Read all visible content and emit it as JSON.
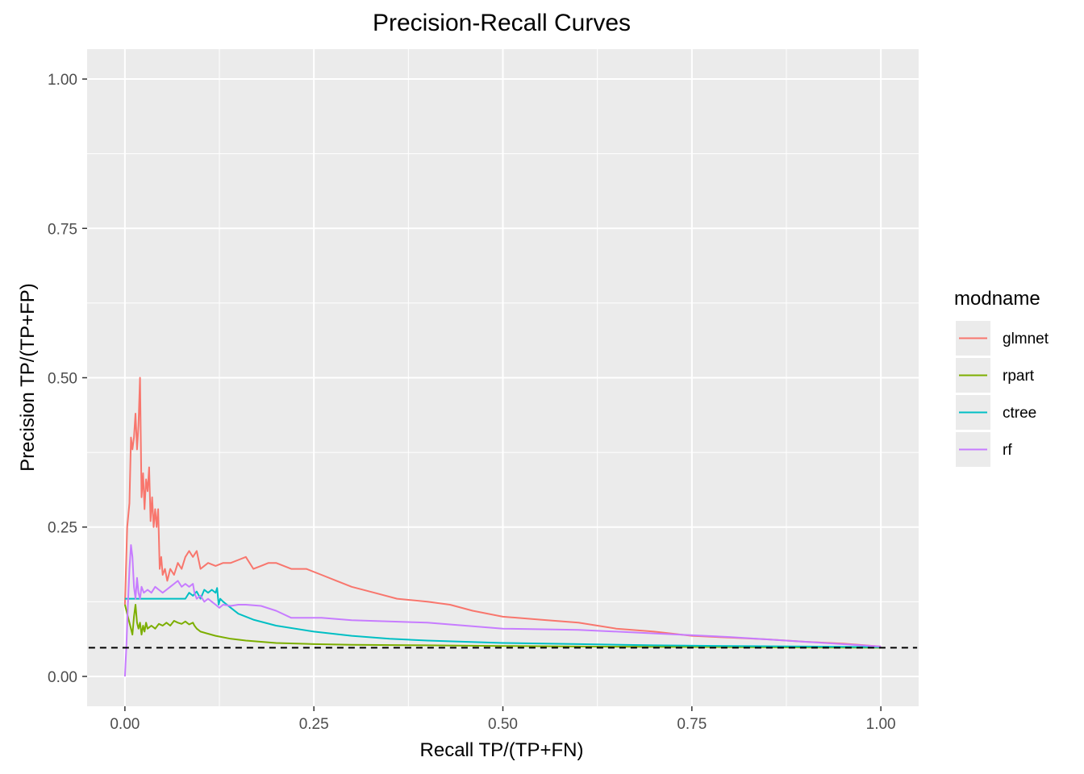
{
  "chart_data": {
    "type": "line",
    "title": "Precision-Recall Curves",
    "xlabel": "Recall TP/(TP+FN)",
    "ylabel": "Precision TP/(TP+FP)",
    "xlim": [
      -0.05,
      1.05
    ],
    "ylim": [
      -0.05,
      1.05
    ],
    "x_ticks": [
      0.0,
      0.25,
      0.5,
      0.75,
      1.0
    ],
    "x_tick_labels": [
      "0.00",
      "0.25",
      "0.50",
      "0.75",
      "1.00"
    ],
    "y_ticks": [
      0.0,
      0.25,
      0.5,
      0.75,
      1.0
    ],
    "y_tick_labels": [
      "0.00",
      "0.25",
      "0.50",
      "0.75",
      "1.00"
    ],
    "grid": true,
    "legend": {
      "title": "modname",
      "position": "right"
    },
    "baseline": {
      "y": 0.048,
      "style": "dashed",
      "color": "#000000"
    },
    "series": [
      {
        "name": "glmnet",
        "color": "#F8766D",
        "points": [
          [
            0.0,
            0.12
          ],
          [
            0.003,
            0.25
          ],
          [
            0.006,
            0.29
          ],
          [
            0.008,
            0.4
          ],
          [
            0.01,
            0.38
          ],
          [
            0.012,
            0.4
          ],
          [
            0.014,
            0.44
          ],
          [
            0.016,
            0.38
          ],
          [
            0.018,
            0.42
          ],
          [
            0.02,
            0.5
          ],
          [
            0.022,
            0.3
          ],
          [
            0.024,
            0.34
          ],
          [
            0.026,
            0.28
          ],
          [
            0.028,
            0.33
          ],
          [
            0.03,
            0.31
          ],
          [
            0.032,
            0.35
          ],
          [
            0.034,
            0.26
          ],
          [
            0.036,
            0.3
          ],
          [
            0.038,
            0.25
          ],
          [
            0.04,
            0.28
          ],
          [
            0.042,
            0.25
          ],
          [
            0.044,
            0.28
          ],
          [
            0.046,
            0.18
          ],
          [
            0.048,
            0.2
          ],
          [
            0.05,
            0.17
          ],
          [
            0.053,
            0.18
          ],
          [
            0.056,
            0.16
          ],
          [
            0.06,
            0.18
          ],
          [
            0.065,
            0.17
          ],
          [
            0.07,
            0.19
          ],
          [
            0.075,
            0.18
          ],
          [
            0.08,
            0.2
          ],
          [
            0.085,
            0.21
          ],
          [
            0.09,
            0.2
          ],
          [
            0.095,
            0.21
          ],
          [
            0.1,
            0.18
          ],
          [
            0.11,
            0.19
          ],
          [
            0.12,
            0.185
          ],
          [
            0.13,
            0.19
          ],
          [
            0.14,
            0.19
          ],
          [
            0.15,
            0.195
          ],
          [
            0.16,
            0.2
          ],
          [
            0.17,
            0.18
          ],
          [
            0.18,
            0.185
          ],
          [
            0.19,
            0.19
          ],
          [
            0.2,
            0.19
          ],
          [
            0.22,
            0.18
          ],
          [
            0.24,
            0.18
          ],
          [
            0.26,
            0.17
          ],
          [
            0.28,
            0.16
          ],
          [
            0.3,
            0.15
          ],
          [
            0.33,
            0.14
          ],
          [
            0.36,
            0.13
          ],
          [
            0.4,
            0.125
          ],
          [
            0.43,
            0.12
          ],
          [
            0.46,
            0.11
          ],
          [
            0.5,
            0.1
          ],
          [
            0.55,
            0.095
          ],
          [
            0.6,
            0.09
          ],
          [
            0.65,
            0.08
          ],
          [
            0.7,
            0.075
          ],
          [
            0.75,
            0.068
          ],
          [
            0.8,
            0.065
          ],
          [
            0.85,
            0.062
          ],
          [
            0.9,
            0.058
          ],
          [
            0.95,
            0.055
          ],
          [
            1.0,
            0.05
          ]
        ]
      },
      {
        "name": "rpart",
        "color": "#7CAE00",
        "points": [
          [
            0.0,
            0.12
          ],
          [
            0.004,
            0.1
          ],
          [
            0.008,
            0.08
          ],
          [
            0.01,
            0.07
          ],
          [
            0.012,
            0.1
          ],
          [
            0.014,
            0.12
          ],
          [
            0.016,
            0.09
          ],
          [
            0.018,
            0.08
          ],
          [
            0.02,
            0.09
          ],
          [
            0.022,
            0.07
          ],
          [
            0.024,
            0.085
          ],
          [
            0.026,
            0.075
          ],
          [
            0.028,
            0.09
          ],
          [
            0.03,
            0.08
          ],
          [
            0.035,
            0.085
          ],
          [
            0.04,
            0.08
          ],
          [
            0.045,
            0.088
          ],
          [
            0.05,
            0.085
          ],
          [
            0.055,
            0.09
          ],
          [
            0.06,
            0.085
          ],
          [
            0.065,
            0.093
          ],
          [
            0.07,
            0.09
          ],
          [
            0.075,
            0.088
          ],
          [
            0.08,
            0.092
          ],
          [
            0.085,
            0.087
          ],
          [
            0.09,
            0.09
          ],
          [
            0.092,
            0.085
          ],
          [
            0.095,
            0.08
          ],
          [
            0.1,
            0.075
          ],
          [
            0.12,
            0.068
          ],
          [
            0.14,
            0.063
          ],
          [
            0.16,
            0.06
          ],
          [
            0.2,
            0.056
          ],
          [
            0.25,
            0.054
          ],
          [
            0.3,
            0.053
          ],
          [
            0.4,
            0.052
          ],
          [
            0.5,
            0.051
          ],
          [
            0.6,
            0.05
          ],
          [
            0.8,
            0.049
          ],
          [
            1.0,
            0.048
          ]
        ]
      },
      {
        "name": "ctree",
        "color": "#00BFC4",
        "points": [
          [
            0.0,
            0.13
          ],
          [
            0.02,
            0.13
          ],
          [
            0.04,
            0.13
          ],
          [
            0.06,
            0.13
          ],
          [
            0.07,
            0.13
          ],
          [
            0.08,
            0.13
          ],
          [
            0.085,
            0.14
          ],
          [
            0.09,
            0.135
          ],
          [
            0.095,
            0.142
          ],
          [
            0.1,
            0.13
          ],
          [
            0.105,
            0.145
          ],
          [
            0.11,
            0.14
          ],
          [
            0.115,
            0.145
          ],
          [
            0.12,
            0.14
          ],
          [
            0.122,
            0.148
          ],
          [
            0.124,
            0.12
          ],
          [
            0.126,
            0.13
          ],
          [
            0.13,
            0.125
          ],
          [
            0.14,
            0.115
          ],
          [
            0.15,
            0.105
          ],
          [
            0.17,
            0.095
          ],
          [
            0.2,
            0.085
          ],
          [
            0.25,
            0.075
          ],
          [
            0.3,
            0.068
          ],
          [
            0.35,
            0.063
          ],
          [
            0.4,
            0.06
          ],
          [
            0.5,
            0.056
          ],
          [
            0.6,
            0.054
          ],
          [
            0.7,
            0.052
          ],
          [
            0.8,
            0.051
          ],
          [
            0.9,
            0.05
          ],
          [
            1.0,
            0.049
          ]
        ]
      },
      {
        "name": "rf",
        "color": "#C77CFF",
        "points": [
          [
            0.0,
            0.0
          ],
          [
            0.002,
            0.05
          ],
          [
            0.004,
            0.12
          ],
          [
            0.006,
            0.18
          ],
          [
            0.008,
            0.22
          ],
          [
            0.01,
            0.2
          ],
          [
            0.012,
            0.15
          ],
          [
            0.014,
            0.13
          ],
          [
            0.016,
            0.165
          ],
          [
            0.018,
            0.14
          ],
          [
            0.02,
            0.13
          ],
          [
            0.022,
            0.15
          ],
          [
            0.025,
            0.14
          ],
          [
            0.03,
            0.145
          ],
          [
            0.035,
            0.14
          ],
          [
            0.04,
            0.15
          ],
          [
            0.045,
            0.145
          ],
          [
            0.05,
            0.14
          ],
          [
            0.055,
            0.145
          ],
          [
            0.06,
            0.15
          ],
          [
            0.065,
            0.155
          ],
          [
            0.07,
            0.16
          ],
          [
            0.075,
            0.15
          ],
          [
            0.08,
            0.155
          ],
          [
            0.085,
            0.15
          ],
          [
            0.09,
            0.155
          ],
          [
            0.092,
            0.14
          ],
          [
            0.095,
            0.13
          ],
          [
            0.1,
            0.135
          ],
          [
            0.105,
            0.125
          ],
          [
            0.11,
            0.13
          ],
          [
            0.115,
            0.125
          ],
          [
            0.12,
            0.12
          ],
          [
            0.125,
            0.115
          ],
          [
            0.13,
            0.12
          ],
          [
            0.14,
            0.118
          ],
          [
            0.15,
            0.12
          ],
          [
            0.16,
            0.12
          ],
          [
            0.18,
            0.118
          ],
          [
            0.2,
            0.11
          ],
          [
            0.22,
            0.098
          ],
          [
            0.26,
            0.098
          ],
          [
            0.3,
            0.094
          ],
          [
            0.4,
            0.09
          ],
          [
            0.5,
            0.08
          ],
          [
            0.6,
            0.078
          ],
          [
            0.7,
            0.072
          ],
          [
            0.8,
            0.066
          ],
          [
            0.9,
            0.058
          ],
          [
            1.0,
            0.05
          ]
        ]
      }
    ]
  }
}
